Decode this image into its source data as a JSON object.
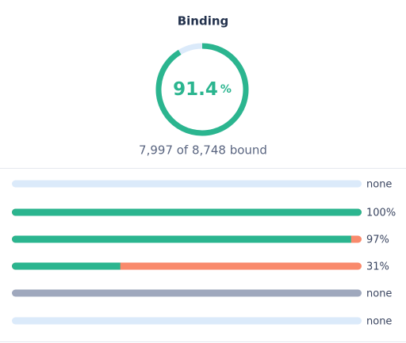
{
  "title": "Binding",
  "gauge": {
    "value": 91.4,
    "unit": "%",
    "max": 100,
    "color": "#2bb58f",
    "track_color": "#dbeafa"
  },
  "summary": "7,997 of 8,748 bound",
  "fill_color": "#2bb58f",
  "rest_color": "#f98a6c",
  "rows": [
    {
      "label": "none",
      "value": null,
      "color": "#dbeafa"
    },
    {
      "label": "100%",
      "value": 100
    },
    {
      "label": "97%",
      "value": 97
    },
    {
      "label": "31%",
      "value": 31
    },
    {
      "label": "none",
      "value": null,
      "color": "#9fa8bd"
    },
    {
      "label": "none",
      "value": null,
      "color": "#dbeafa"
    }
  ]
}
